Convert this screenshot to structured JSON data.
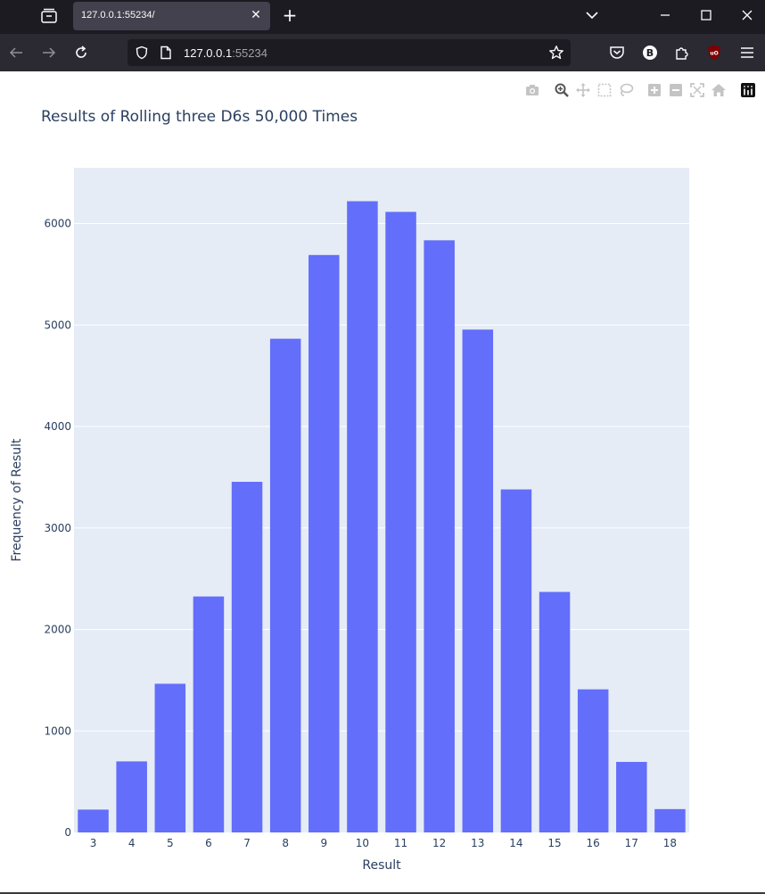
{
  "browser": {
    "tab_title": "127.0.0.1:55234/",
    "url_host": "127.0.0.1",
    "url_port": ":55234"
  },
  "colors": {
    "bar": "#636efa",
    "plot_bg": "#e5ecf6",
    "grid": "#ffffff",
    "text": "#2a3f5f"
  },
  "chart_data": {
    "type": "bar",
    "title": "Results of Rolling three D6s 50,000 Times",
    "xlabel": "Result",
    "ylabel": "Frequency of Result",
    "categories": [
      "3",
      "4",
      "5",
      "6",
      "7",
      "8",
      "9",
      "10",
      "11",
      "12",
      "13",
      "14",
      "15",
      "16",
      "17",
      "18"
    ],
    "values": [
      225,
      700,
      1465,
      2325,
      3455,
      4865,
      5690,
      6220,
      6115,
      5835,
      4955,
      3380,
      2370,
      1410,
      695,
      230
    ],
    "ylim": [
      0,
      6550
    ],
    "yticks": [
      0,
      1000,
      2000,
      3000,
      4000,
      5000,
      6000
    ],
    "grid": true,
    "legend": "none"
  }
}
